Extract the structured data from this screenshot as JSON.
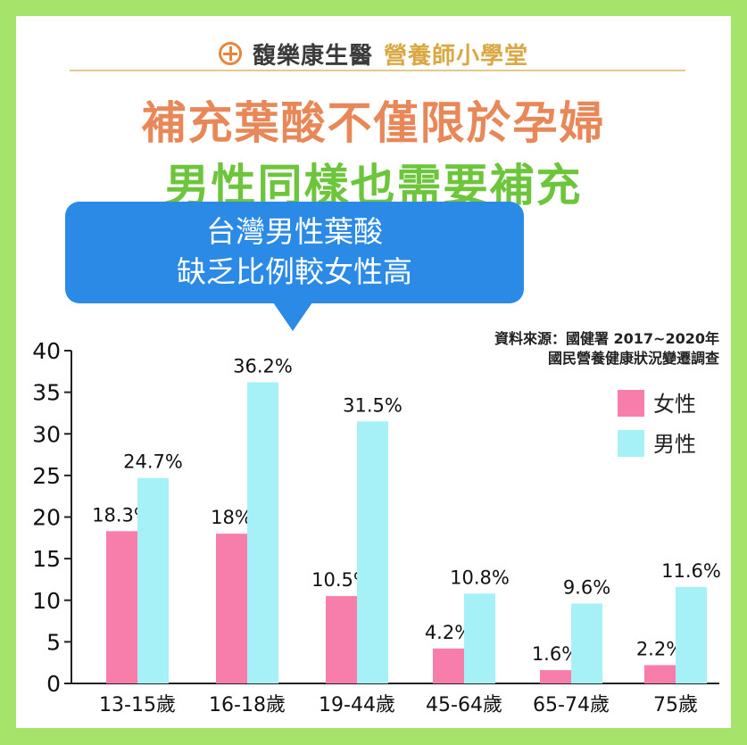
{
  "brand": {
    "name": "馥樂康生醫",
    "sub": "營養師小學堂"
  },
  "headline": {
    "line1": "補充葉酸不僅限於孕婦",
    "line2": "男性同樣也需要補充"
  },
  "callout": {
    "line1": "台灣男性葉酸",
    "line2": "缺乏比例較女性高"
  },
  "source": {
    "line1": "資料來源：國健署 2017~2020年",
    "line2": "國民營養健康狀況變遷調查"
  },
  "colors": {
    "female": "#f77daa",
    "male": "#a6f0f7",
    "background": "#a6e36a",
    "accent": "#2b8ae6"
  },
  "chart_data": {
    "type": "bar",
    "categories": [
      "13-15歲",
      "16-18歲",
      "19-44歲",
      "45-64歲",
      "65-74歲",
      "75歲"
    ],
    "series": [
      {
        "name": "女性",
        "values": [
          18.3,
          18,
          10.5,
          4.2,
          1.6,
          2.2
        ],
        "labels": [
          "18.3%",
          "18%",
          "10.5%",
          "4.2%",
          "1.6%",
          "2.2%"
        ]
      },
      {
        "name": "男性",
        "values": [
          24.7,
          36.2,
          31.5,
          10.8,
          9.6,
          11.6
        ],
        "labels": [
          "24.7%",
          "36.2%",
          "31.5%",
          "10.8%",
          "9.6%",
          "11.6%"
        ]
      }
    ],
    "ylim": [
      0,
      40
    ],
    "yticks": [
      "0",
      "5",
      "10",
      "15",
      "20",
      "25",
      "30",
      "35",
      "40"
    ],
    "legend_position": "top-right",
    "grid": false
  }
}
